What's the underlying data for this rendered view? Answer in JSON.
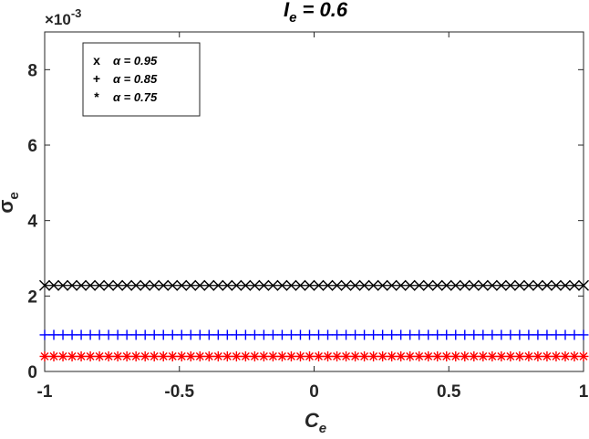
{
  "chart_data": {
    "type": "scatter",
    "title_main": "I",
    "title_sub": "e",
    "title_rest": " = 0.6",
    "xlabel_main": "C",
    "xlabel_sub": "e",
    "ylabel_main": "σ",
    "ylabel_sub": "e",
    "y_exponent_base": "×10",
    "y_exponent_power": "-3",
    "xlim": [
      -1,
      1
    ],
    "ylim": [
      0,
      9
    ],
    "x_ticks": [
      -1,
      -0.5,
      0,
      0.5,
      1
    ],
    "x_tick_labels": [
      "-1",
      "-0.5",
      "0",
      "0.5",
      "1"
    ],
    "y_ticks": [
      0,
      2,
      4,
      6,
      8
    ],
    "y_tick_labels": [
      "0",
      "2",
      "4",
      "6",
      "8"
    ],
    "grid": false,
    "legend_position": "top-left",
    "point_count": 60,
    "series": [
      {
        "name": "α = 0.95",
        "legend_marker": "x",
        "marker": "x",
        "color": "#000000",
        "y": 2.28
      },
      {
        "name": "α = 0.85",
        "legend_marker": "+",
        "marker": "+",
        "color": "#0000ff",
        "y": 0.97
      },
      {
        "name": "α = 0.75",
        "legend_marker": "*",
        "marker": "*",
        "color": "#ff0000",
        "y": 0.4
      }
    ]
  }
}
